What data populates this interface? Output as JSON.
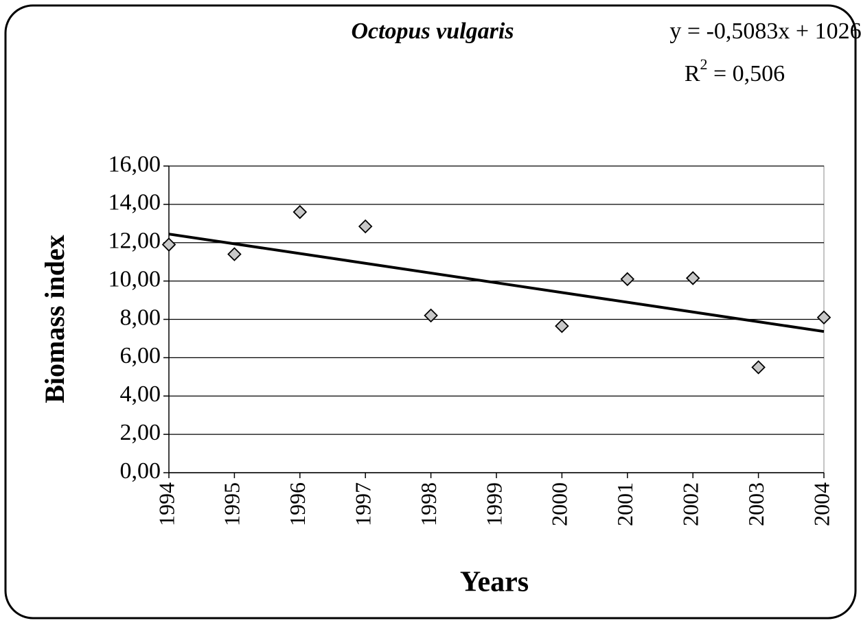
{
  "chart_data": {
    "type": "scatter",
    "title": "Octopus vulgaris",
    "x_label": "Years",
    "y_label": "Biomass  index",
    "trendline": {
      "equation": "y = -0,5083x + 1026",
      "slope": -0.5083,
      "intercept": 1026,
      "r2_label": [
        "R",
        "2",
        " = 0,506"
      ],
      "r2": 0.506,
      "color": "#000000"
    },
    "series": [
      {
        "color": "#c8c8c8",
        "x": [
          1994,
          1995,
          1996,
          1997,
          1998,
          2000,
          2001,
          2002,
          2003,
          2004
        ],
        "values": [
          11.9,
          11.4,
          13.6,
          12.85,
          8.2,
          7.65,
          10.1,
          10.15,
          5.5,
          8.1
        ]
      }
    ],
    "xlim": [
      1994,
      2004
    ],
    "xticks": [
      1994,
      1995,
      1996,
      1997,
      1998,
      1999,
      2000,
      2001,
      2002,
      2003,
      2004
    ],
    "ylim": [
      0,
      16
    ],
    "yticks": [
      {
        "value": 0,
        "label": "0,00"
      },
      {
        "value": 2,
        "label": "2,00"
      },
      {
        "value": 4,
        "label": "4,00"
      },
      {
        "value": 6,
        "label": "6,00"
      },
      {
        "value": 8,
        "label": "8,00"
      },
      {
        "value": 10,
        "label": "10,00"
      },
      {
        "value": 12,
        "label": "12,00"
      },
      {
        "value": 14,
        "label": "14,00"
      },
      {
        "value": 16,
        "label": "16,00"
      }
    ],
    "grid": true
  }
}
